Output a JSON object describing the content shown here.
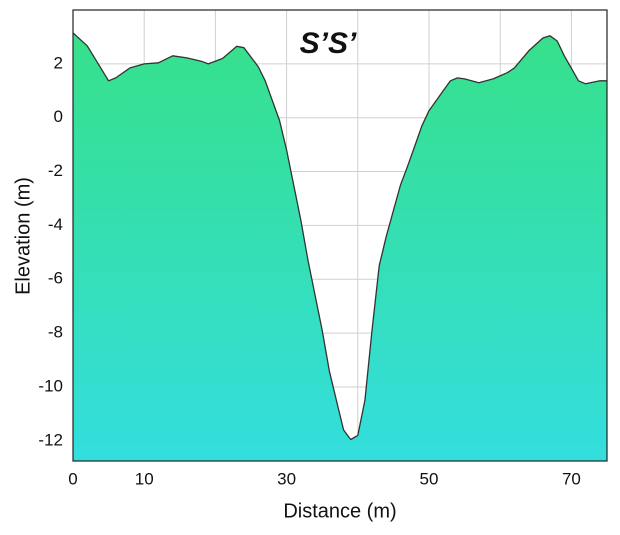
{
  "chart_data": {
    "type": "area",
    "title": "S’S’",
    "x_label": "Distance (m)",
    "y_label": "Elevation (m)",
    "x": [
      0,
      2,
      4,
      5,
      6,
      8,
      10,
      12,
      14,
      16,
      18,
      19,
      21,
      23,
      24,
      26,
      27,
      29,
      30,
      31,
      32,
      33,
      34,
      35,
      36,
      37,
      38,
      39,
      40,
      41,
      42,
      43,
      44,
      45,
      46,
      47,
      48,
      49,
      50,
      51,
      52,
      53,
      54,
      55,
      57,
      59,
      61,
      62,
      64,
      66,
      67,
      68,
      69,
      71,
      72,
      74,
      75
    ],
    "values": [
      3.15,
      2.67,
      1.8,
      1.37,
      1.48,
      1.85,
      2.0,
      2.04,
      2.3,
      2.22,
      2.1,
      2.0,
      2.2,
      2.65,
      2.6,
      1.9,
      1.37,
      -0.1,
      -1.2,
      -2.5,
      -3.8,
      -5.3,
      -6.6,
      -7.9,
      -9.4,
      -10.5,
      -11.6,
      -11.95,
      -11.8,
      -10.5,
      -7.9,
      -5.5,
      -4.4,
      -3.45,
      -2.5,
      -1.8,
      -1.05,
      -0.3,
      0.26,
      0.63,
      1.0,
      1.37,
      1.48,
      1.44,
      1.3,
      1.44,
      1.67,
      1.85,
      2.48,
      2.96,
      3.04,
      2.85,
      2.3,
      1.37,
      1.26,
      1.37,
      1.37
    ],
    "xlim": [
      0,
      75
    ],
    "ylim": [
      -12.75,
      4
    ],
    "xticks": [
      0,
      10,
      30,
      50,
      70
    ],
    "x_gridlines": [
      10,
      20,
      30,
      40,
      50,
      60,
      70
    ],
    "yticks": [
      2,
      0,
      -2,
      -4,
      -6,
      -8,
      -10,
      -12
    ],
    "grid": true,
    "color_top": "#36e08a",
    "color_bottom": "#33dede",
    "line_color": "#333333"
  }
}
